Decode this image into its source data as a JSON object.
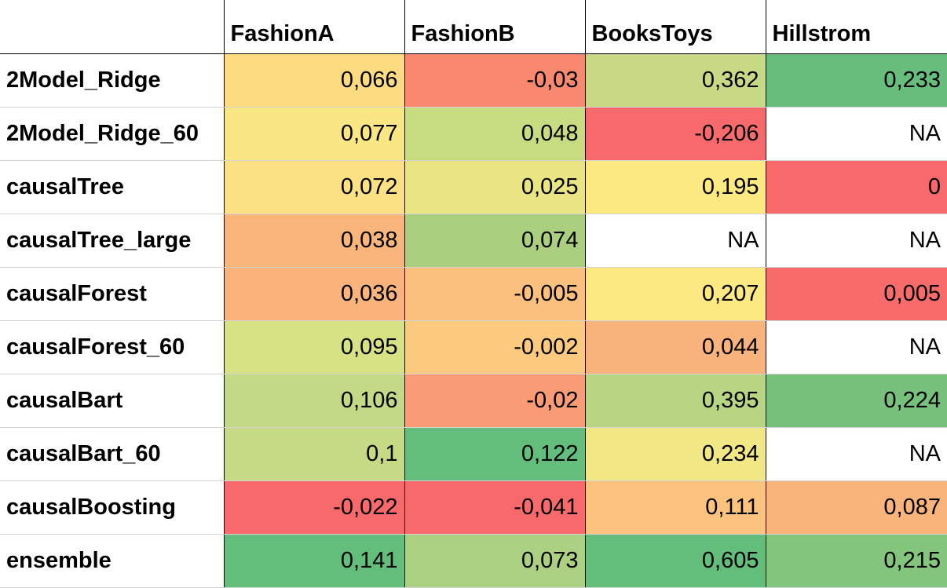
{
  "columns": [
    "",
    "FashionA",
    "FashionB",
    "BooksToys",
    "Hillstrom"
  ],
  "rows": [
    {
      "label": "2Model_Ridge",
      "cells": [
        {
          "value": "0,066",
          "color": "#fddb80"
        },
        {
          "value": "-0,03",
          "color": "#f8896f"
        },
        {
          "value": "0,362",
          "color": "#c7d985"
        },
        {
          "value": "0,233",
          "color": "#67bd7c"
        }
      ]
    },
    {
      "label": "2Model_Ridge_60",
      "cells": [
        {
          "value": "0,077",
          "color": "#fbe684"
        },
        {
          "value": "0,048",
          "color": "#c7db80"
        },
        {
          "value": "-0,206",
          "color": "#f8696b"
        },
        {
          "value": "NA",
          "color": "#ffffff"
        }
      ]
    },
    {
      "label": "causalTree",
      "cells": [
        {
          "value": "0,072",
          "color": "#fbe183"
        },
        {
          "value": "0,025",
          "color": "#e9e583"
        },
        {
          "value": "0,195",
          "color": "#fde982"
        },
        {
          "value": "0",
          "color": "#f8696b"
        }
      ]
    },
    {
      "label": "causalTree_large",
      "cells": [
        {
          "value": "0,038",
          "color": "#fab57b"
        },
        {
          "value": "0,074",
          "color": "#aad07f"
        },
        {
          "value": "NA",
          "color": "#ffffff"
        },
        {
          "value": "NA",
          "color": "#ffffff"
        }
      ]
    },
    {
      "label": "causalForest",
      "cells": [
        {
          "value": "0,036",
          "color": "#f9b37b"
        },
        {
          "value": "-0,005",
          "color": "#fbc07e"
        },
        {
          "value": "0,207",
          "color": "#fde982"
        },
        {
          "value": "0,005",
          "color": "#f86b6b"
        }
      ]
    },
    {
      "label": "causalForest_60",
      "cells": [
        {
          "value": "0,095",
          "color": "#d6e284"
        },
        {
          "value": "-0,002",
          "color": "#fcca7f"
        },
        {
          "value": "0,044",
          "color": "#f8b27b"
        },
        {
          "value": "NA",
          "color": "#ffffff"
        }
      ]
    },
    {
      "label": "causalBart",
      "cells": [
        {
          "value": "0,106",
          "color": "#c4d986"
        },
        {
          "value": "-0,02",
          "color": "#f99c75"
        },
        {
          "value": "0,395",
          "color": "#b8d583"
        },
        {
          "value": "0,224",
          "color": "#78c17c"
        }
      ]
    },
    {
      "label": "causalBart_60",
      "cells": [
        {
          "value": "0,1",
          "color": "#c6da86"
        },
        {
          "value": "0,122",
          "color": "#63be7b"
        },
        {
          "value": "0,234",
          "color": "#f1e784"
        },
        {
          "value": "NA",
          "color": "#ffffff"
        }
      ]
    },
    {
      "label": "causalBoosting",
      "cells": [
        {
          "value": "-0,022",
          "color": "#f8696b"
        },
        {
          "value": "-0,041",
          "color": "#f8696b"
        },
        {
          "value": "0,111",
          "color": "#fbc37d"
        },
        {
          "value": "0,087",
          "color": "#f9b47b"
        }
      ]
    },
    {
      "label": "ensemble",
      "cells": [
        {
          "value": "0,141",
          "color": "#63be7b"
        },
        {
          "value": "0,073",
          "color": "#abd081"
        },
        {
          "value": "0,605",
          "color": "#63be7b"
        },
        {
          "value": "0,215",
          "color": "#84c57e"
        }
      ]
    }
  ]
}
